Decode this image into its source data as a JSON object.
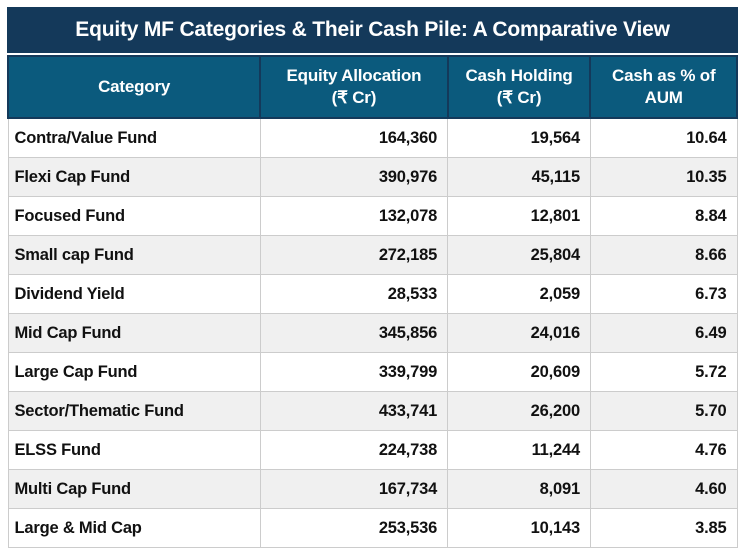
{
  "colors": {
    "title_bg": "#14395A",
    "header_bg": "#0B5A7D",
    "header_border": "#14395A",
    "row_alt_bg": "#F0F0F0",
    "cell_border": "#CCCCCC",
    "header_text": "#FFFFFF",
    "body_text": "#111111"
  },
  "chart_data": {
    "type": "table",
    "title": "Equity MF Categories & Their Cash Pile: A Comparative View",
    "columns": [
      {
        "line1": "Category",
        "line2": ""
      },
      {
        "line1": "Equity Allocation",
        "line2": "(₹ Cr)"
      },
      {
        "line1": "Cash Holding",
        "line2": "(₹ Cr)"
      },
      {
        "line1": "Cash as % of",
        "line2": "AUM"
      }
    ],
    "rows": [
      {
        "category": "Contra/Value Fund",
        "equity_allocation": "164,360",
        "cash_holding": "19,564",
        "cash_pct_aum": "10.64"
      },
      {
        "category": "Flexi Cap Fund",
        "equity_allocation": "390,976",
        "cash_holding": "45,115",
        "cash_pct_aum": "10.35"
      },
      {
        "category": "Focused Fund",
        "equity_allocation": "132,078",
        "cash_holding": "12,801",
        "cash_pct_aum": "8.84"
      },
      {
        "category": "Small cap Fund",
        "equity_allocation": "272,185",
        "cash_holding": "25,804",
        "cash_pct_aum": "8.66"
      },
      {
        "category": "Dividend Yield",
        "equity_allocation": "28,533",
        "cash_holding": "2,059",
        "cash_pct_aum": "6.73"
      },
      {
        "category": "Mid Cap Fund",
        "equity_allocation": "345,856",
        "cash_holding": "24,016",
        "cash_pct_aum": "6.49"
      },
      {
        "category": "Large Cap Fund",
        "equity_allocation": "339,799",
        "cash_holding": "20,609",
        "cash_pct_aum": "5.72"
      },
      {
        "category": "Sector/Thematic Fund",
        "equity_allocation": "433,741",
        "cash_holding": "26,200",
        "cash_pct_aum": "5.70"
      },
      {
        "category": "ELSS Fund",
        "equity_allocation": "224,738",
        "cash_holding": "11,244",
        "cash_pct_aum": "4.76"
      },
      {
        "category": "Multi Cap Fund",
        "equity_allocation": "167,734",
        "cash_holding": "8,091",
        "cash_pct_aum": "4.60"
      },
      {
        "category": "Large & Mid Cap",
        "equity_allocation": "253,536",
        "cash_holding": "10,143",
        "cash_pct_aum": "3.85"
      }
    ]
  }
}
